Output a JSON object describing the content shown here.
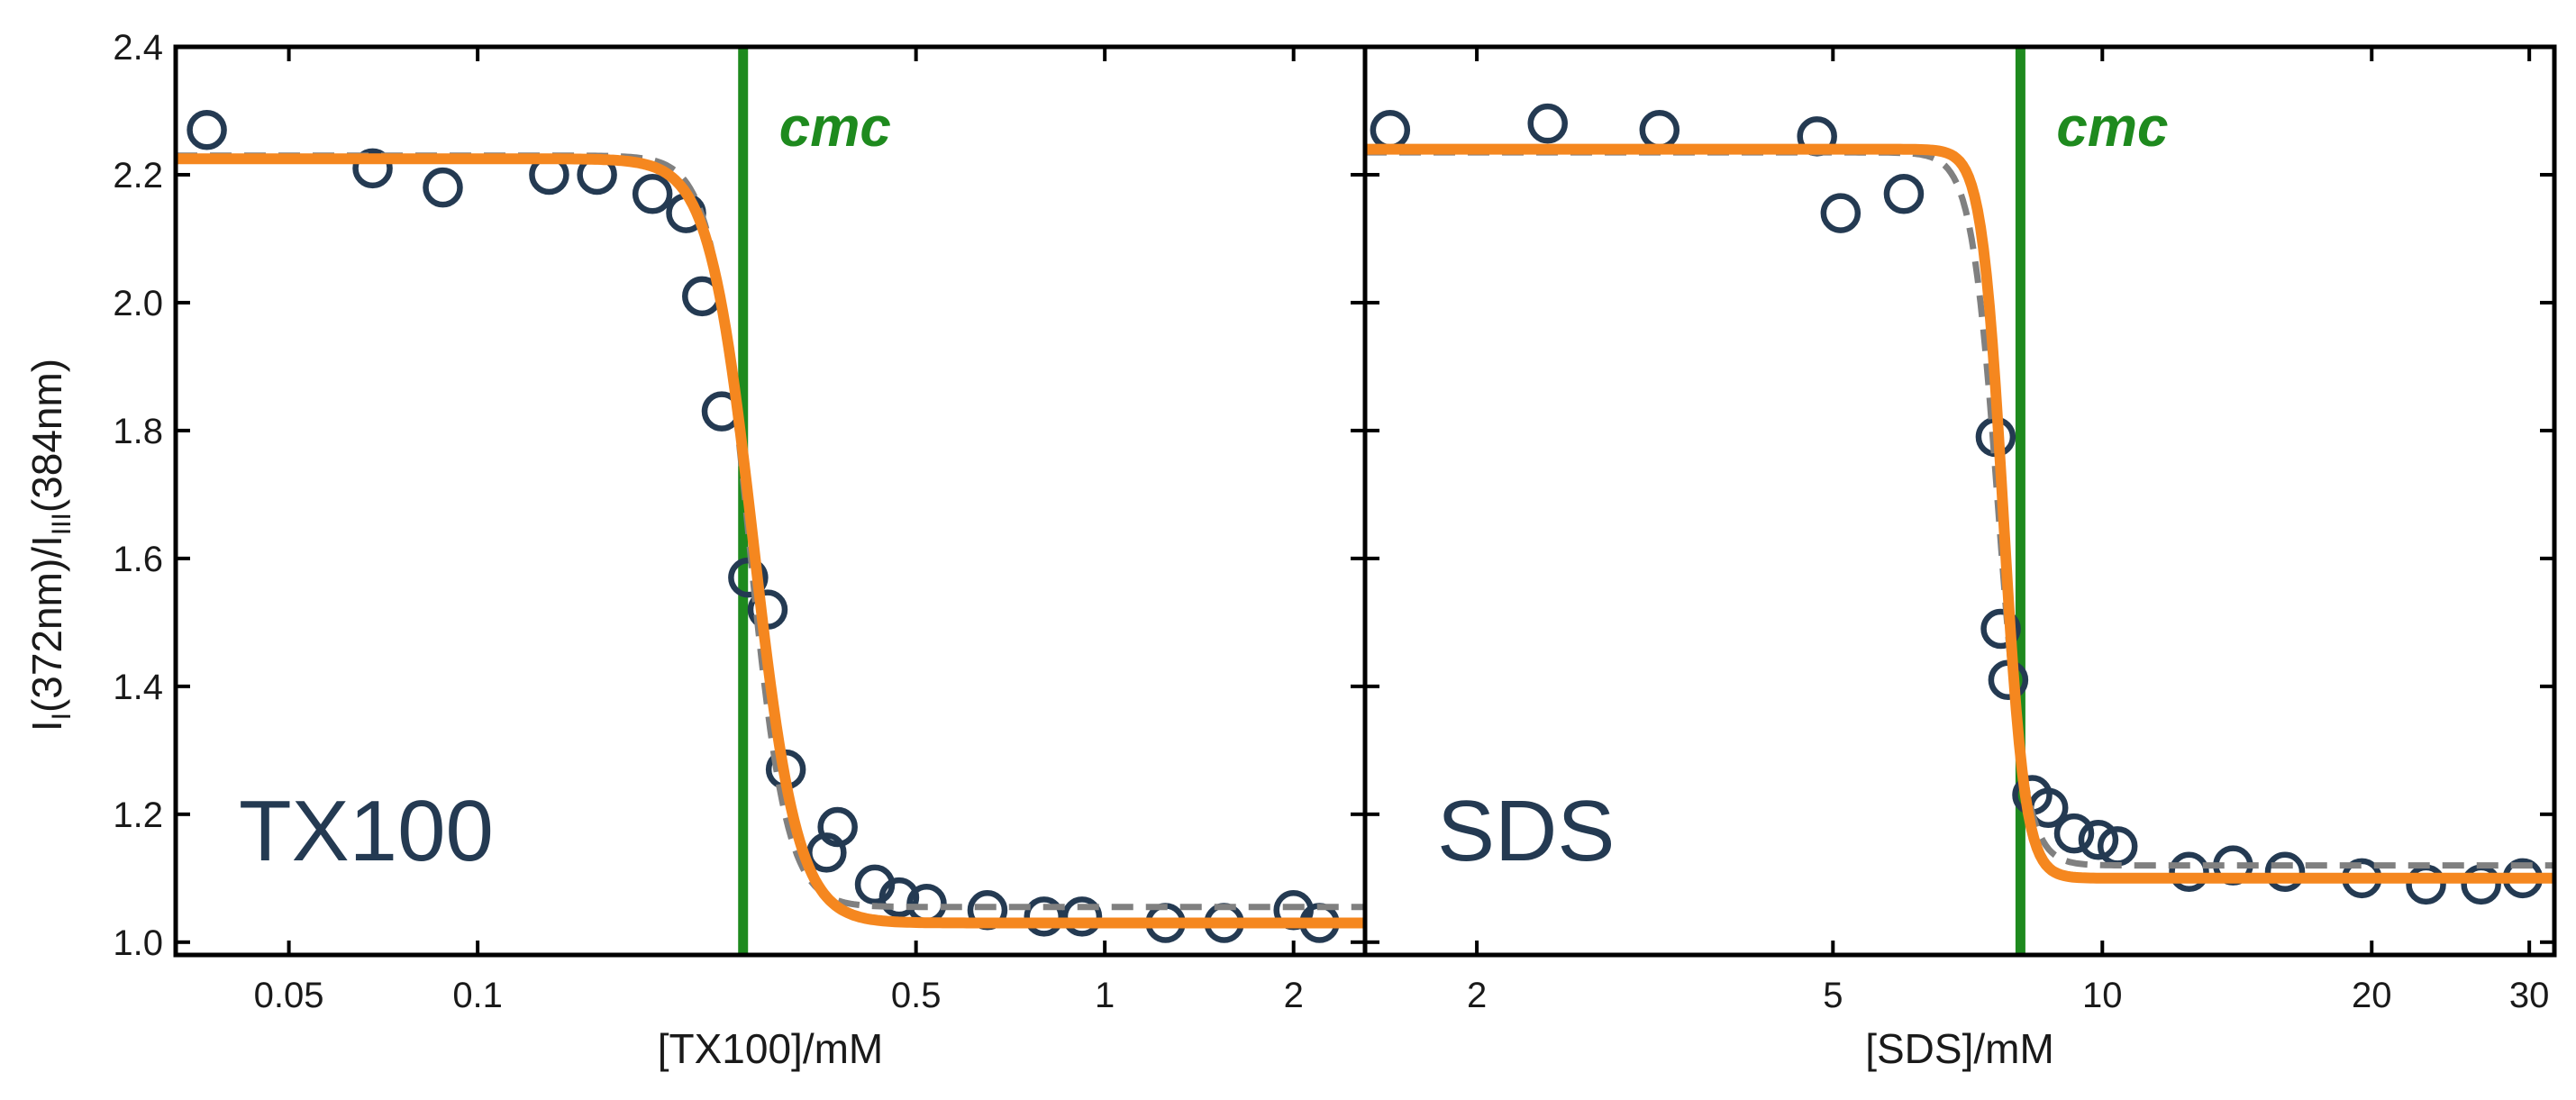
{
  "chart_data": [
    {
      "type": "scatter",
      "panel_label": "TX100",
      "xlabel": "[TX100]/mM",
      "ylabel_parts": [
        "I",
        "I",
        "(372nm)/I",
        "III",
        "(384nm)"
      ],
      "x_scale": "log",
      "xlim": [
        0.033,
        2.6
      ],
      "ylim": [
        0.98,
        2.4
      ],
      "x_ticks": [
        0.05,
        0.1,
        0.5,
        1,
        2
      ],
      "x_tick_labels": [
        "0.05",
        "0.1",
        "0.5",
        "1",
        "2"
      ],
      "y_ticks": [
        1.0,
        1.2,
        1.4,
        1.6,
        1.8,
        2.0,
        2.2,
        2.4
      ],
      "y_tick_labels": [
        "1.0",
        "1.2",
        "1.4",
        "1.6",
        "1.8",
        "2.0",
        "2.2",
        "2.4"
      ],
      "cmc_x": 0.265,
      "cmc_label": "cmc",
      "points": {
        "x": [
          0.037,
          0.068,
          0.088,
          0.13,
          0.155,
          0.19,
          0.215,
          0.228,
          0.245,
          0.27,
          0.29,
          0.31,
          0.36,
          0.375,
          0.43,
          0.47,
          0.52,
          0.65,
          0.8,
          0.92,
          1.25,
          1.55,
          2.0,
          2.2
        ],
        "y": [
          2.27,
          2.21,
          2.18,
          2.2,
          2.2,
          2.17,
          2.14,
          2.01,
          1.83,
          1.57,
          1.52,
          1.27,
          1.14,
          1.18,
          1.09,
          1.07,
          1.06,
          1.05,
          1.04,
          1.04,
          1.03,
          1.03,
          1.05,
          1.03
        ]
      },
      "series": [
        {
          "name": "fit (solid)",
          "color": "#f5871f",
          "style": "solid",
          "x0": 0.275,
          "width_decades": 0.035,
          "ymax": 2.225,
          "ymin": 1.03
        },
        {
          "name": "fit (dashed)",
          "color": "#808080",
          "style": "dashed",
          "x0": 0.27,
          "width_decades": 0.03,
          "ymax": 2.23,
          "ymin": 1.055
        }
      ]
    },
    {
      "type": "scatter",
      "panel_label": "SDS",
      "xlabel": "[SDS]/mM",
      "x_scale": "log",
      "xlim": [
        1.5,
        32
      ],
      "ylim": [
        0.98,
        2.4
      ],
      "x_ticks": [
        2,
        5,
        10,
        20,
        30
      ],
      "x_tick_labels": [
        "2",
        "5",
        "10",
        "20",
        "30"
      ],
      "y_ticks": [
        1.0,
        1.2,
        1.4,
        1.6,
        1.8,
        2.0,
        2.2,
        2.4
      ],
      "cmc_x": 8.1,
      "cmc_label": "cmc",
      "points": {
        "x": [
          1.6,
          2.4,
          3.2,
          4.8,
          5.1,
          6.0,
          7.6,
          7.7,
          7.85,
          8.35,
          8.7,
          9.3,
          9.9,
          10.4,
          12.5,
          14,
          16,
          19.5,
          23,
          26.5,
          29.5
        ],
        "y": [
          2.27,
          2.28,
          2.27,
          2.26,
          2.14,
          2.17,
          1.79,
          1.49,
          1.41,
          1.23,
          1.21,
          1.17,
          1.16,
          1.15,
          1.11,
          1.12,
          1.11,
          1.1,
          1.09,
          1.09,
          1.1
        ]
      },
      "series": [
        {
          "name": "fit (solid)",
          "color": "#f5871f",
          "style": "solid",
          "x0": 7.75,
          "width_decades": 0.012,
          "ymax": 2.24,
          "ymin": 1.1
        },
        {
          "name": "fit (dashed)",
          "color": "#808080",
          "style": "dashed",
          "x0": 7.65,
          "width_decades": 0.015,
          "ymax": 2.235,
          "ymin": 1.12
        }
      ]
    }
  ],
  "colors": {
    "marker": "#243a52",
    "cmc_line": "#1e8a1e",
    "fit_solid": "#f5871f",
    "fit_dashed": "#808080",
    "panel_label": "#243a52",
    "axis": "#000000"
  }
}
